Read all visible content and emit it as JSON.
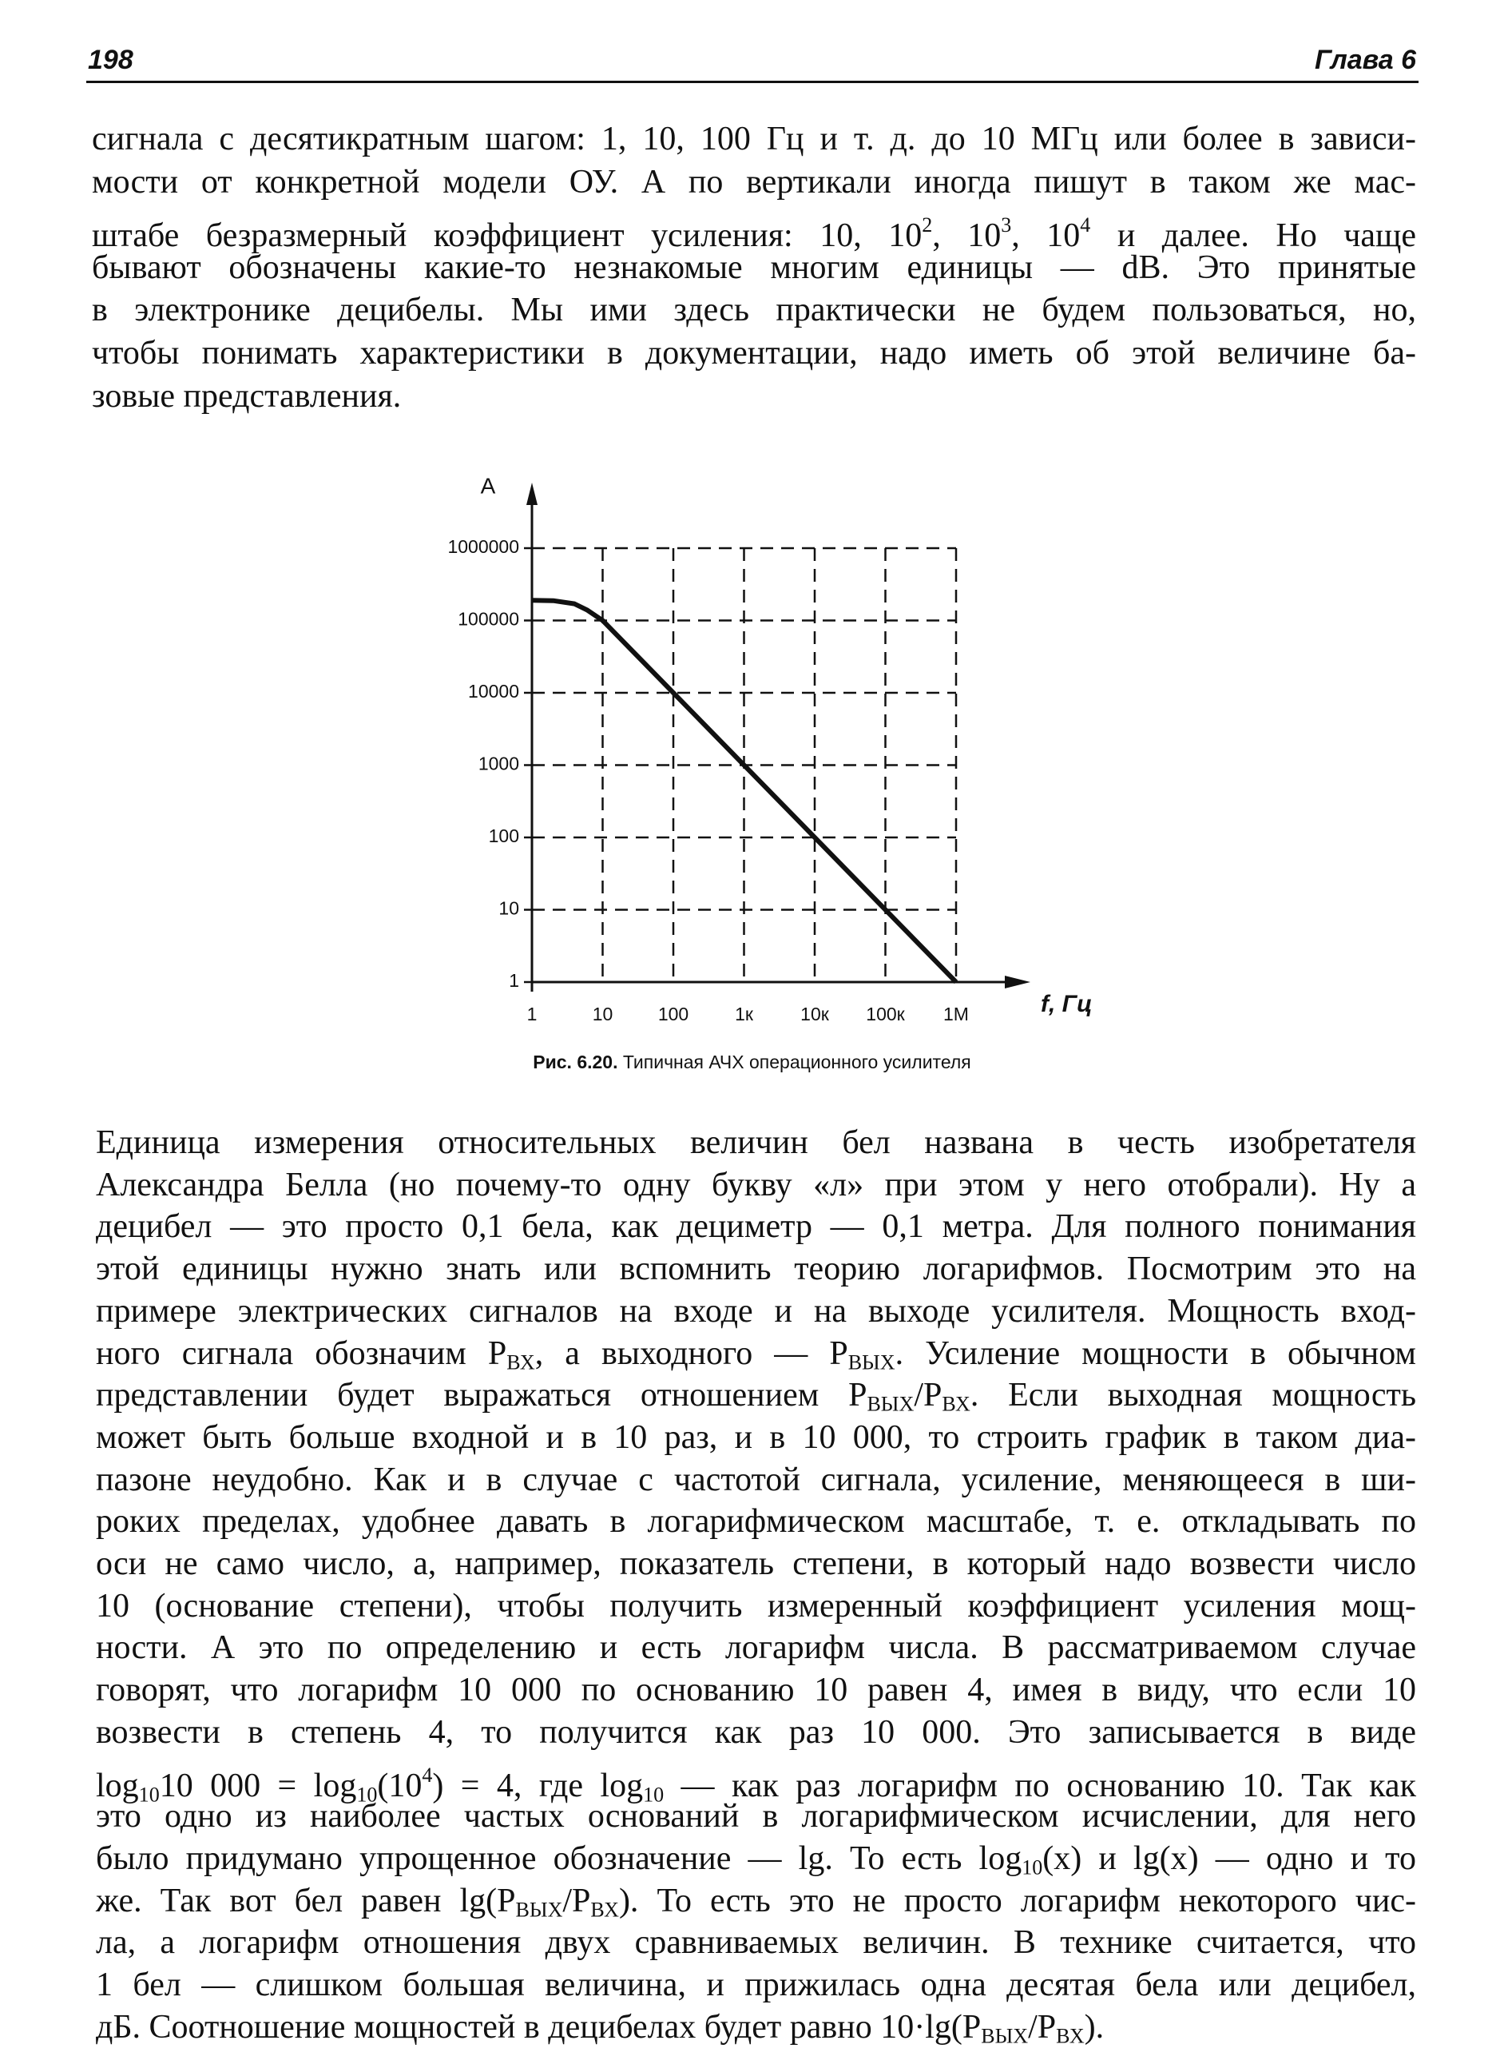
{
  "header": {
    "page_number": "198",
    "chapter": "Глава 6"
  },
  "paragraph_top": [
    "сигнала с десятикратным шагом: 1, 10, 100 Гц и т. д. до 10 МГц или более в зависи-",
    "мости от конкретной модели ОУ. А по вертикали иногда пишут в таком же мас-",
    [
      "штабе безразмерный коэффициент усиления: 10, 10",
      {
        "sup": "2"
      },
      ", 10",
      {
        "sup": "3"
      },
      ", 10",
      {
        "sup": "4"
      },
      " и далее. Но чаще"
    ],
    "бывают обозначены какие-то незнакомые многим единицы — dB. Это принятые",
    "в электронике децибелы. Мы ими здесь практически не будем пользоваться, но,",
    "чтобы понимать характеристики в документации, надо иметь об этой величине ба-",
    "зовые представления."
  ],
  "chart_data": {
    "type": "line",
    "y_axis_label": "A",
    "x_axis_label": "f, Гц",
    "xscale": "log",
    "yscale": "log",
    "grid": true,
    "xlim": [
      1,
      1000000
    ],
    "ylim": [
      1,
      1000000
    ],
    "xticks": [
      1,
      10,
      100,
      {
        "value": 1000,
        "label": "1к"
      },
      {
        "value": 10000,
        "label": "10к"
      },
      {
        "value": 100000,
        "label": "100к"
      },
      {
        "value": 1000000,
        "label": "1M"
      }
    ],
    "yticks": [
      1,
      10,
      100,
      1000,
      10000,
      100000,
      1000000
    ],
    "series": [
      {
        "color": "#111111",
        "x": [
          1,
          2,
          4,
          6,
          10,
          100,
          1000,
          10000,
          100000,
          1000000
        ],
        "values": [
          190000,
          188000,
          170000,
          140000,
          100000,
          10000,
          1000,
          100,
          10,
          1
        ]
      }
    ]
  },
  "caption": {
    "label": "Рис. 6.20.",
    "text": "Типичная АЧХ операционного усилителя"
  },
  "paragraph_bottom": [
    "Единица измерения относительных величин бел названа в честь изобретателя",
    "Александра Белла (но почему-то одну букву «л» при этом у него отобрали). Ну а",
    "децибел — это просто 0,1 бела, как дециметр — 0,1 метра. Для полного понимания",
    "этой единицы нужно знать или вспомнить теорию логарифмов. Посмотрим это на",
    "примере электрических сигналов на входе и на выходе усилителя. Мощность вход-",
    [
      "ного сигнала обозначим P",
      {
        "sub": "ВХ"
      },
      ", а выходного — P",
      {
        "sub": "ВЫХ"
      },
      ". Усиление мощности в обычном"
    ],
    [
      "представлении будет выражаться отношением P",
      {
        "sub": "ВЫХ"
      },
      "/P",
      {
        "sub": "ВХ"
      },
      ". Если выходная мощность"
    ],
    "может быть больше входной и в 10 раз, и в 10 000, то строить график в таком диа-",
    "пазоне неудобно. Как и в случае с частотой сигнала, усиление, меняющееся в ши-",
    "роких пределах, удобнее давать в логарифмическом масштабе, т. е. откладывать по",
    "оси не само число, а, например, показатель степени, в который надо возвести число",
    "10 (основание степени), чтобы получить измеренный коэффициент усиления мощ-",
    "ности. А это по определению и есть логарифм числа. В рассматриваемом случае",
    "говорят, что логарифм 10 000 по основанию 10 равен 4, имея в виду, что если 10",
    "возвести в степень 4, то получится как раз 10 000. Это записывается в виде",
    [
      "log",
      {
        "sub": "10"
      },
      "10 000 = log",
      {
        "sub": "10"
      },
      "(10",
      {
        "sup": "4"
      },
      ") = 4, где log",
      {
        "sub": "10"
      },
      " — как раз логарифм по основанию 10. Так как"
    ],
    "это одно из наиболее частых оснований в логарифмическом исчислении, для него",
    [
      "было придумано упрощенное обозначение — lg. То есть log",
      {
        "sub": "10"
      },
      "(x) и lg(x) — одно и то"
    ],
    [
      "же. Так вот бел равен lg(P",
      {
        "sub": "ВЫХ"
      },
      "/P",
      {
        "sub": "ВХ"
      },
      "). То есть это не просто логарифм некоторого чис-"
    ],
    "ла, а логарифм отношения двух сравниваемых величин. В технике считается, что",
    "1 бел — слишком большая величина, и прижилась одна десятая бела или децибел,",
    [
      "дБ. Соотношение мощностей в децибелах будет равно 10·lg(P",
      {
        "sub": "ВЫХ"
      },
      "/P",
      {
        "sub": "ВХ"
      },
      ")."
    ]
  ]
}
